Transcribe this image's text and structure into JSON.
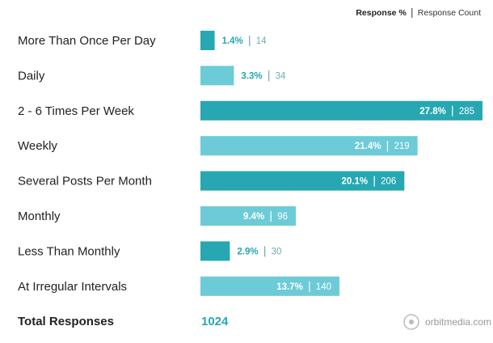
{
  "chart_data": {
    "type": "bar",
    "categories": [
      "More Than Once Per Day",
      "Daily",
      "2 - 6 Times Per Week",
      "Weekly",
      "Several Posts Per Month",
      "Monthly",
      "Less Than Monthly",
      "At Irregular Intervals"
    ],
    "series": [
      {
        "name": "Response %",
        "values": [
          1.4,
          3.3,
          27.8,
          21.4,
          20.1,
          9.4,
          2.9,
          13.7
        ],
        "value_labels": [
          "1.4%",
          "3.3%",
          "27.8%",
          "21.4%",
          "20.1%",
          "9.4%",
          "2.9%",
          "13.7%"
        ]
      },
      {
        "name": "Response Count",
        "values": [
          14,
          34,
          285,
          219,
          206,
          96,
          30,
          140
        ]
      }
    ],
    "colors": [
      "#27a7b1",
      "#6dcbd8",
      "#27a7b1",
      "#6dcbd8",
      "#27a7b1",
      "#6dcbd8",
      "#27a7b1",
      "#6dcbd8"
    ],
    "total": {
      "label": "Total Responses",
      "value": 1024
    },
    "source": "orbitmedia.com"
  }
}
